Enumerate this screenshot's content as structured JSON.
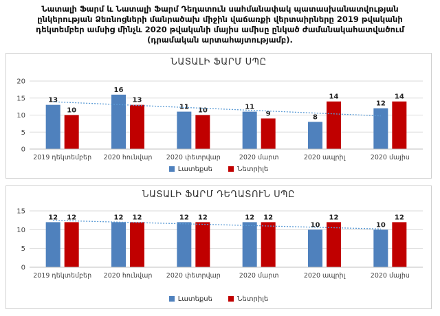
{
  "caption": "Նատալի Ֆարմ և Նատալի Ֆարմ Դեղատուն սահմանափակ պատասխանատվության ընկերության Ձեռնոցների մանրածախ միջին վաճառքի վերտաիրները 2019 թվականի դեկտեմբեր ամսից մինչև 2020 թվականի մայիս ամիսը ընկած ժամանակահատվածում (դրամական արտահայտությամբ).",
  "colors": {
    "series1": "#4f81bd",
    "series2": "#c00000",
    "trend": "#5b9bd5",
    "grid": "#d9d9d9"
  },
  "chart_data": [
    {
      "type": "bar",
      "title": "ՆԱՏԱԼԻ ՖԱՐՄ ՍՊԸ",
      "categories": [
        "2019 դեկտեմբեր",
        "2020 հունվար",
        "2020 փետրվար",
        "2020 մարտ",
        "2020 ապրիլ",
        "2020 մայիս"
      ],
      "series": [
        {
          "name": "Լատեքսե",
          "values": [
            13,
            16,
            11,
            11,
            8,
            12
          ]
        },
        {
          "name": "Նետրիլե",
          "values": [
            10,
            13,
            10,
            9,
            14,
            14
          ]
        }
      ],
      "trendline": "Լատեքսե",
      "yticks": [
        0,
        5,
        10,
        15,
        20
      ],
      "ylim": [
        0,
        20
      ],
      "grid": true,
      "legend": "bottom"
    },
    {
      "type": "bar",
      "title": "ՆԱՏԱԼԻ ՖԱՐՄ ԴԵՂԱՏՈՒՆ ՍՊԸ",
      "categories": [
        "2019 դեկտեմբեր",
        "2020 հունվար",
        "2020 փետրվար",
        "2020 մարտ",
        "2020 ապրիլ",
        "2020 մայիս"
      ],
      "series": [
        {
          "name": "Լատեքսե",
          "values": [
            12,
            12,
            12,
            12,
            10,
            10
          ]
        },
        {
          "name": "Նետրիլե",
          "values": [
            12,
            12,
            12,
            12,
            12,
            12
          ]
        }
      ],
      "trendline": "Լատեքսե",
      "yticks": [
        0,
        5,
        10,
        15
      ],
      "ylim": [
        0,
        15
      ],
      "grid": true,
      "legend": "bottom"
    }
  ]
}
